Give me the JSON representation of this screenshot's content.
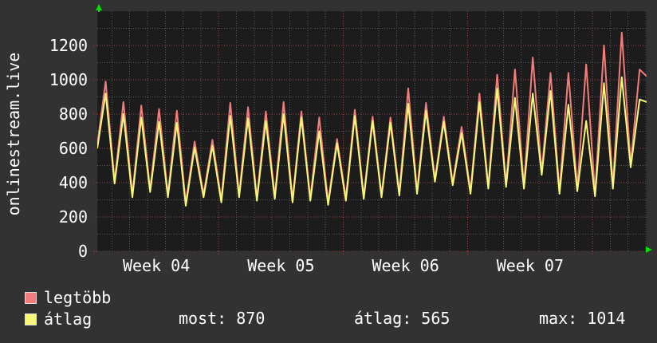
{
  "title_vertical": "onlinestream.live",
  "colors": {
    "background": "#323232",
    "plot_background": "#1c1c1c",
    "grid_major": "#9a4343",
    "grid_minor": "#5a5a5a",
    "axis_zero": "#9a4343",
    "text": "#ffffff",
    "arrow": "#00dd00",
    "series_legtobb": "#f17d7d",
    "series_atlag": "#f8f878",
    "swatch_border": "#e0e0e0"
  },
  "legend": {
    "series": [
      {
        "label": "legtöbb",
        "color": "#f17d7d"
      },
      {
        "label": "átlag",
        "color": "#f8f878"
      }
    ],
    "stats": [
      {
        "label": "most:",
        "value": "870"
      },
      {
        "label": "átlag:",
        "value": "565"
      },
      {
        "label": "max:",
        "value": "1014"
      }
    ]
  },
  "icons": {
    "top_left": "green-up-arrow",
    "bottom_right": "green-right-arrow"
  },
  "chart_data": {
    "type": "line",
    "title": "onlinestream.live",
    "x_unit": "days",
    "x_tick_labels": [
      "Week 04",
      "Week 05",
      "Week 06",
      "Week 07"
    ],
    "week_length_days": 7,
    "x_domain_days": [
      0.18,
      31.05
    ],
    "ylim": [
      0,
      1400
    ],
    "y_major_ticks": [
      0,
      200,
      400,
      600,
      800,
      1000,
      1200
    ],
    "y_minor_step": 100,
    "grid": true,
    "legend_position": "bottom-left",
    "stats": {
      "most": 870,
      "atlag": 565,
      "max": 1014
    },
    "daily_phase": {
      "trough": 0.15,
      "peak": 0.65
    },
    "series": [
      {
        "name": "legtöbb",
        "color": "#f17d7d",
        "start_value": 620,
        "end_value": 1020,
        "daily_peaks": [
          990,
          870,
          850,
          830,
          820,
          640,
          650,
          865,
          840,
          815,
          870,
          815,
          780,
          655,
          825,
          785,
          780,
          950,
          865,
          785,
          725,
          920,
          1030,
          1060,
          1130,
          1040,
          1040,
          1090,
          1200,
          1275,
          1060
        ],
        "daily_troughs": [
          410,
          330,
          360,
          330,
          280,
          330,
          300,
          330,
          310,
          320,
          300,
          310,
          285,
          310,
          320,
          330,
          340,
          350,
          420,
          400,
          350,
          380,
          390,
          380,
          460,
          350,
          365,
          335,
          380,
          505
        ]
      },
      {
        "name": "átlag",
        "color": "#f8f878",
        "start_value": 600,
        "end_value": 870,
        "daily_peaks": [
          920,
          800,
          780,
          755,
          750,
          605,
          615,
          790,
          775,
          760,
          800,
          780,
          700,
          630,
          790,
          760,
          750,
          860,
          820,
          755,
          690,
          870,
          950,
          895,
          920,
          935,
          855,
          760,
          980,
          1015,
          885
        ],
        "daily_troughs": [
          395,
          315,
          345,
          315,
          265,
          315,
          285,
          315,
          295,
          305,
          285,
          295,
          270,
          295,
          305,
          315,
          325,
          335,
          405,
          385,
          335,
          365,
          375,
          365,
          445,
          335,
          350,
          320,
          365,
          490
        ]
      }
    ]
  }
}
